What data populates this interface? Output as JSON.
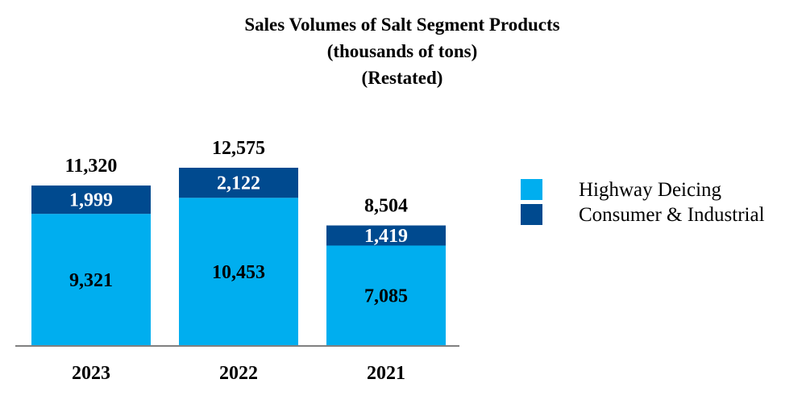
{
  "chart_data": {
    "type": "stacked-bar",
    "title": [
      "Sales Volumes of Salt Segment Products",
      "(thousands of tons)",
      "(Restated)"
    ],
    "categories": [
      "2023",
      "2022",
      "2021"
    ],
    "series": [
      {
        "name": "Highway Deicing",
        "color": "#00aeef",
        "label_color": "#000000",
        "values": [
          9321,
          10453,
          7085
        ],
        "labels": [
          "9,321",
          "10,453",
          "7,085"
        ]
      },
      {
        "name": "Consumer & Industrial",
        "color": "#004a8f",
        "label_color": "#ffffff",
        "values": [
          1999,
          2122,
          1419
        ],
        "labels": [
          "1,999",
          "2,122",
          "1,419"
        ]
      }
    ],
    "totals": [
      11320,
      12575,
      8504
    ],
    "total_labels": [
      "11,320",
      "12,575",
      "8,504"
    ],
    "ylim": [
      0,
      12575
    ],
    "legend_position": "right",
    "axis_color": "#808080",
    "grid": false
  }
}
